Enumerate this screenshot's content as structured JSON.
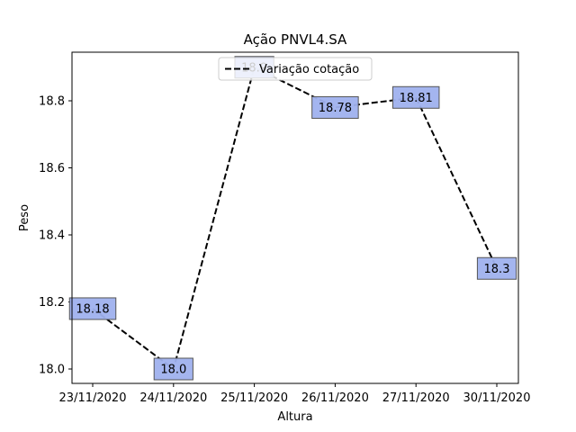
{
  "chart_data": {
    "type": "line",
    "title": "Ação PNVL4.SA",
    "xlabel": "Altura",
    "ylabel": "Peso",
    "categories": [
      "23/11/2020",
      "24/11/2020",
      "25/11/2020",
      "26/11/2020",
      "27/11/2020",
      "30/11/2020"
    ],
    "series": [
      {
        "name": "Variação cotação",
        "values": [
          18.18,
          18.0,
          18.9,
          18.78,
          18.81,
          18.3
        ],
        "data_labels": [
          "18.18",
          "18.0",
          "18.9",
          "18.78",
          "18.81",
          "18.3"
        ],
        "color": "#000000",
        "line_style": "dashed"
      }
    ],
    "ylim": [
      17.96,
      18.95
    ],
    "yticks": [
      18.0,
      18.2,
      18.4,
      18.6,
      18.8
    ],
    "ytick_labels": [
      "18.0",
      "18.2",
      "18.4",
      "18.6",
      "18.8"
    ],
    "grid": false,
    "legend_position": "top-center",
    "label_box_color": "#9fb1ee"
  }
}
